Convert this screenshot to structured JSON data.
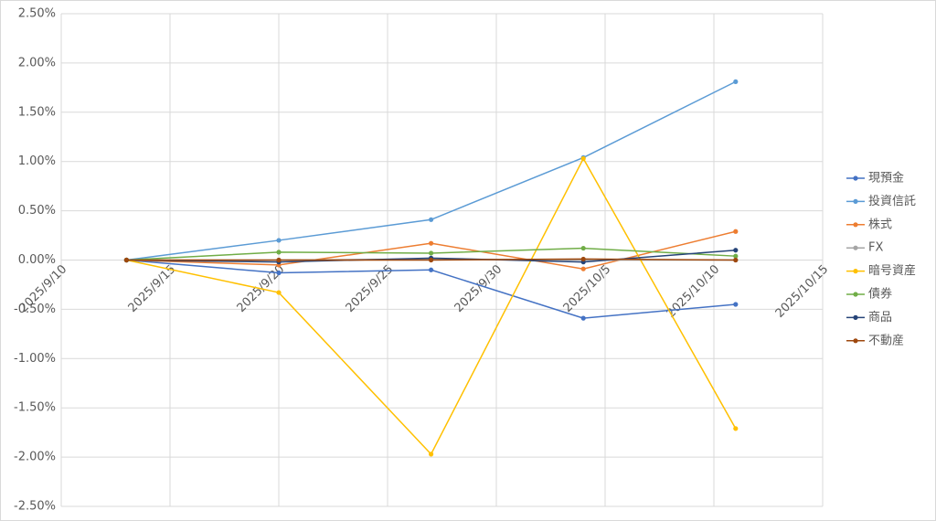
{
  "chart_data": {
    "type": "line",
    "x": [
      "2025/9/13",
      "2025/9/20",
      "2025/9/27",
      "2025/10/4",
      "2025/10/11"
    ],
    "xlim": [
      "2025/9/10",
      "2025/10/15"
    ],
    "xticks": [
      "2025/9/10",
      "2025/9/15",
      "2025/9/20",
      "2025/9/25",
      "2025/9/30",
      "2025/10/5",
      "2025/10/10",
      "2025/10/15"
    ],
    "ylim": [
      -2.5,
      2.5
    ],
    "yticks": [
      {
        "value": -2.5,
        "label": "-2.50%"
      },
      {
        "value": -2,
        "label": "-2.00%"
      },
      {
        "value": -1.5,
        "label": "-1.50%"
      },
      {
        "value": -1,
        "label": "-1.00%"
      },
      {
        "value": -0.5,
        "label": "-0.50%"
      },
      {
        "value": 0,
        "label": "0.00%"
      },
      {
        "value": 0.5,
        "label": "0.50%"
      },
      {
        "value": 1,
        "label": "1.00%"
      },
      {
        "value": 1.5,
        "label": "1.50%"
      },
      {
        "value": 2,
        "label": "2.00%"
      },
      {
        "value": 2.5,
        "label": "2.50%"
      }
    ],
    "grid": true,
    "legend": "right",
    "series": [
      {
        "name": "現預金",
        "color": "#4472c4",
        "values": [
          0,
          -0.13,
          -0.1,
          -0.59,
          -0.45
        ]
      },
      {
        "name": "投資信託",
        "color": "#5b9bd5",
        "values": [
          0,
          0.2,
          0.41,
          1.04,
          1.81
        ]
      },
      {
        "name": "株式",
        "color": "#ed7d31",
        "values": [
          0,
          -0.05,
          0.17,
          -0.09,
          0.29
        ]
      },
      {
        "name": "FX",
        "color": "#a5a5a5",
        "values": [
          0,
          0,
          0.01,
          0,
          0
        ]
      },
      {
        "name": "暗号資産",
        "color": "#ffc000",
        "values": [
          0,
          -0.33,
          -1.97,
          1.03,
          -1.71
        ]
      },
      {
        "name": "債券",
        "color": "#70ad47",
        "values": [
          0,
          0.08,
          0.07,
          0.12,
          0.04
        ]
      },
      {
        "name": "商品",
        "color": "#264478",
        "values": [
          0,
          -0.02,
          0.02,
          -0.02,
          0.1
        ]
      },
      {
        "name": "不動産",
        "color": "#9e480e",
        "values": [
          0,
          0,
          0,
          0.01,
          0
        ]
      }
    ]
  }
}
